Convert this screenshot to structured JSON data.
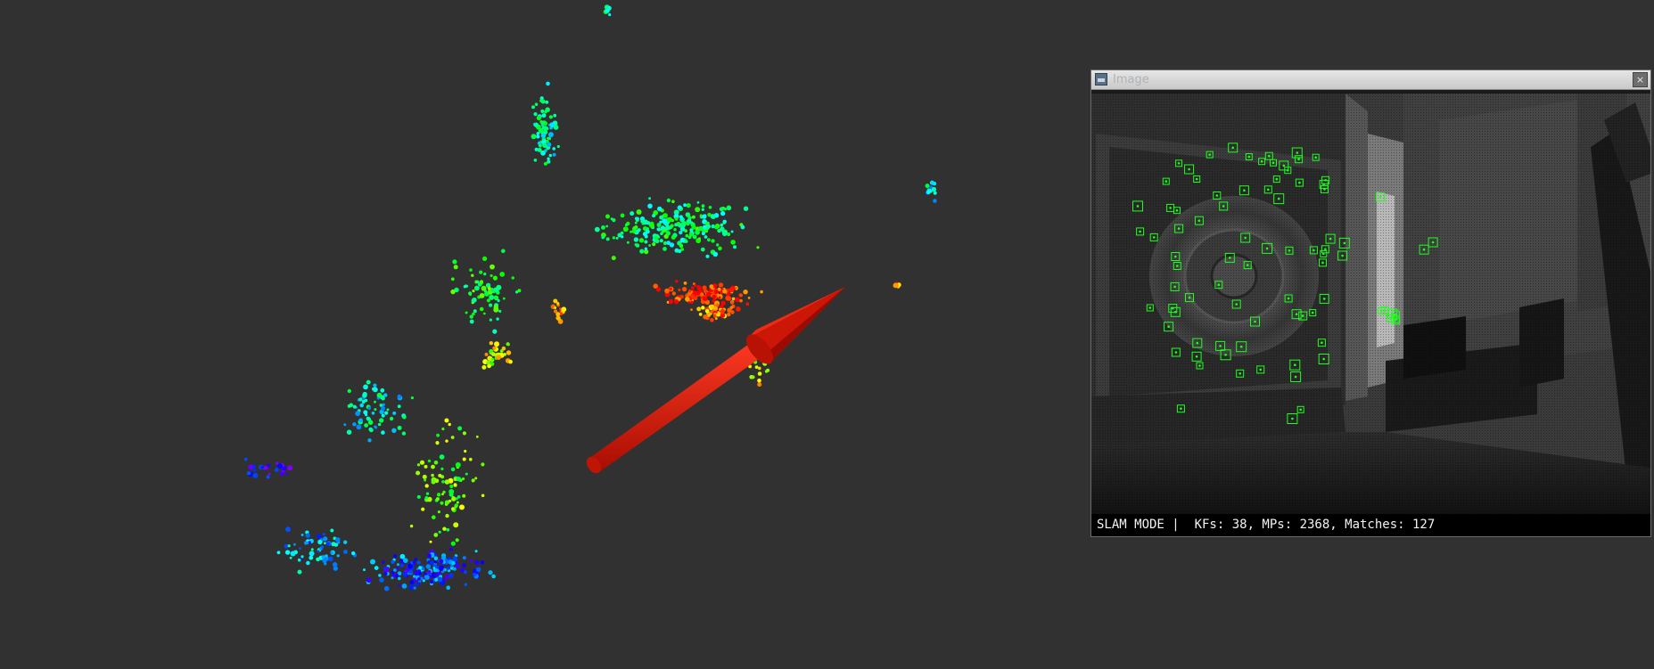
{
  "image_window": {
    "title": "Image",
    "close_glyph": "×",
    "app_icon": "image-window-icon",
    "close_icon": "close-icon"
  },
  "status": {
    "text": "SLAM MODE |  KFs: 38, MPs: 2368, Matches: 127"
  },
  "colors": {
    "background": "#313131",
    "camera_pose_arrow": "#d21a0a",
    "feature_marker": "#1dff1d"
  }
}
